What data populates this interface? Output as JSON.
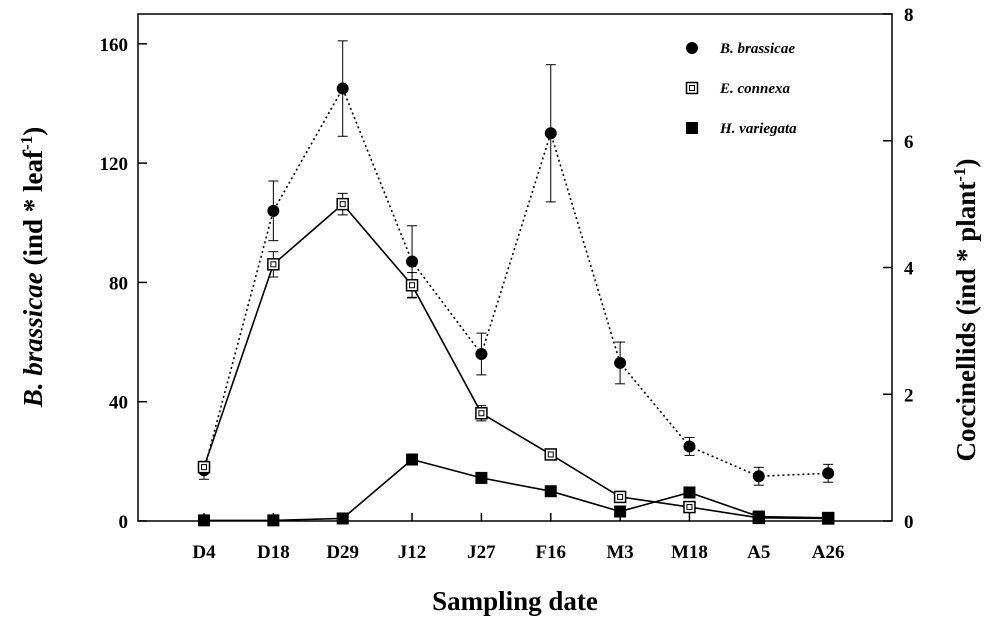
{
  "chart_data": {
    "type": "line",
    "categories": [
      "D4",
      "D18",
      "D29",
      "J12",
      "J27",
      "F16",
      "M3",
      "M18",
      "A5",
      "A26"
    ],
    "xlabel": "Sampling date",
    "ylabel": {
      "italic_part": "B. brassicae",
      "plain_part": " (ind * leaf",
      "sup": "-1",
      "close": ")"
    },
    "y2label": {
      "plain_part": "Coccinellids (ind * plant",
      "sup": "-1",
      "close": ")"
    },
    "ylim": [
      0,
      170
    ],
    "yticks": [
      0,
      40,
      80,
      120,
      160
    ],
    "y2lim": [
      0,
      8
    ],
    "y2ticks": [
      0,
      2,
      4,
      6,
      8
    ],
    "legend_position": "top-right",
    "series": [
      {
        "name": "B. brassicae",
        "axis": "left",
        "marker": "filled-circle",
        "line": "dotted",
        "values": [
          17,
          104,
          145,
          87,
          56,
          130,
          53,
          25,
          15,
          16
        ],
        "errors": [
          3,
          10,
          16,
          12,
          7,
          23,
          7,
          3,
          3,
          3
        ]
      },
      {
        "name": "E. connexa",
        "axis": "right",
        "marker": "open-square",
        "line": "solid",
        "values": [
          0.85,
          4.05,
          5.0,
          3.72,
          1.7,
          1.05,
          0.38,
          0.22,
          0.05,
          0.04
        ],
        "errors": [
          0.08,
          0.2,
          0.17,
          0.2,
          0.12,
          0.06,
          0.05,
          0.04,
          0.03,
          0.02
        ]
      },
      {
        "name": "H. variegata",
        "axis": "right",
        "marker": "filled-square",
        "line": "solid",
        "values": [
          0.01,
          0.01,
          0.04,
          0.97,
          0.68,
          0.47,
          0.15,
          0.45,
          0.07,
          0.05
        ],
        "errors": [
          0.02,
          0.02,
          0.03,
          0.08,
          0.05,
          0.04,
          0.03,
          0.04,
          0.02,
          0.02
        ]
      }
    ]
  }
}
